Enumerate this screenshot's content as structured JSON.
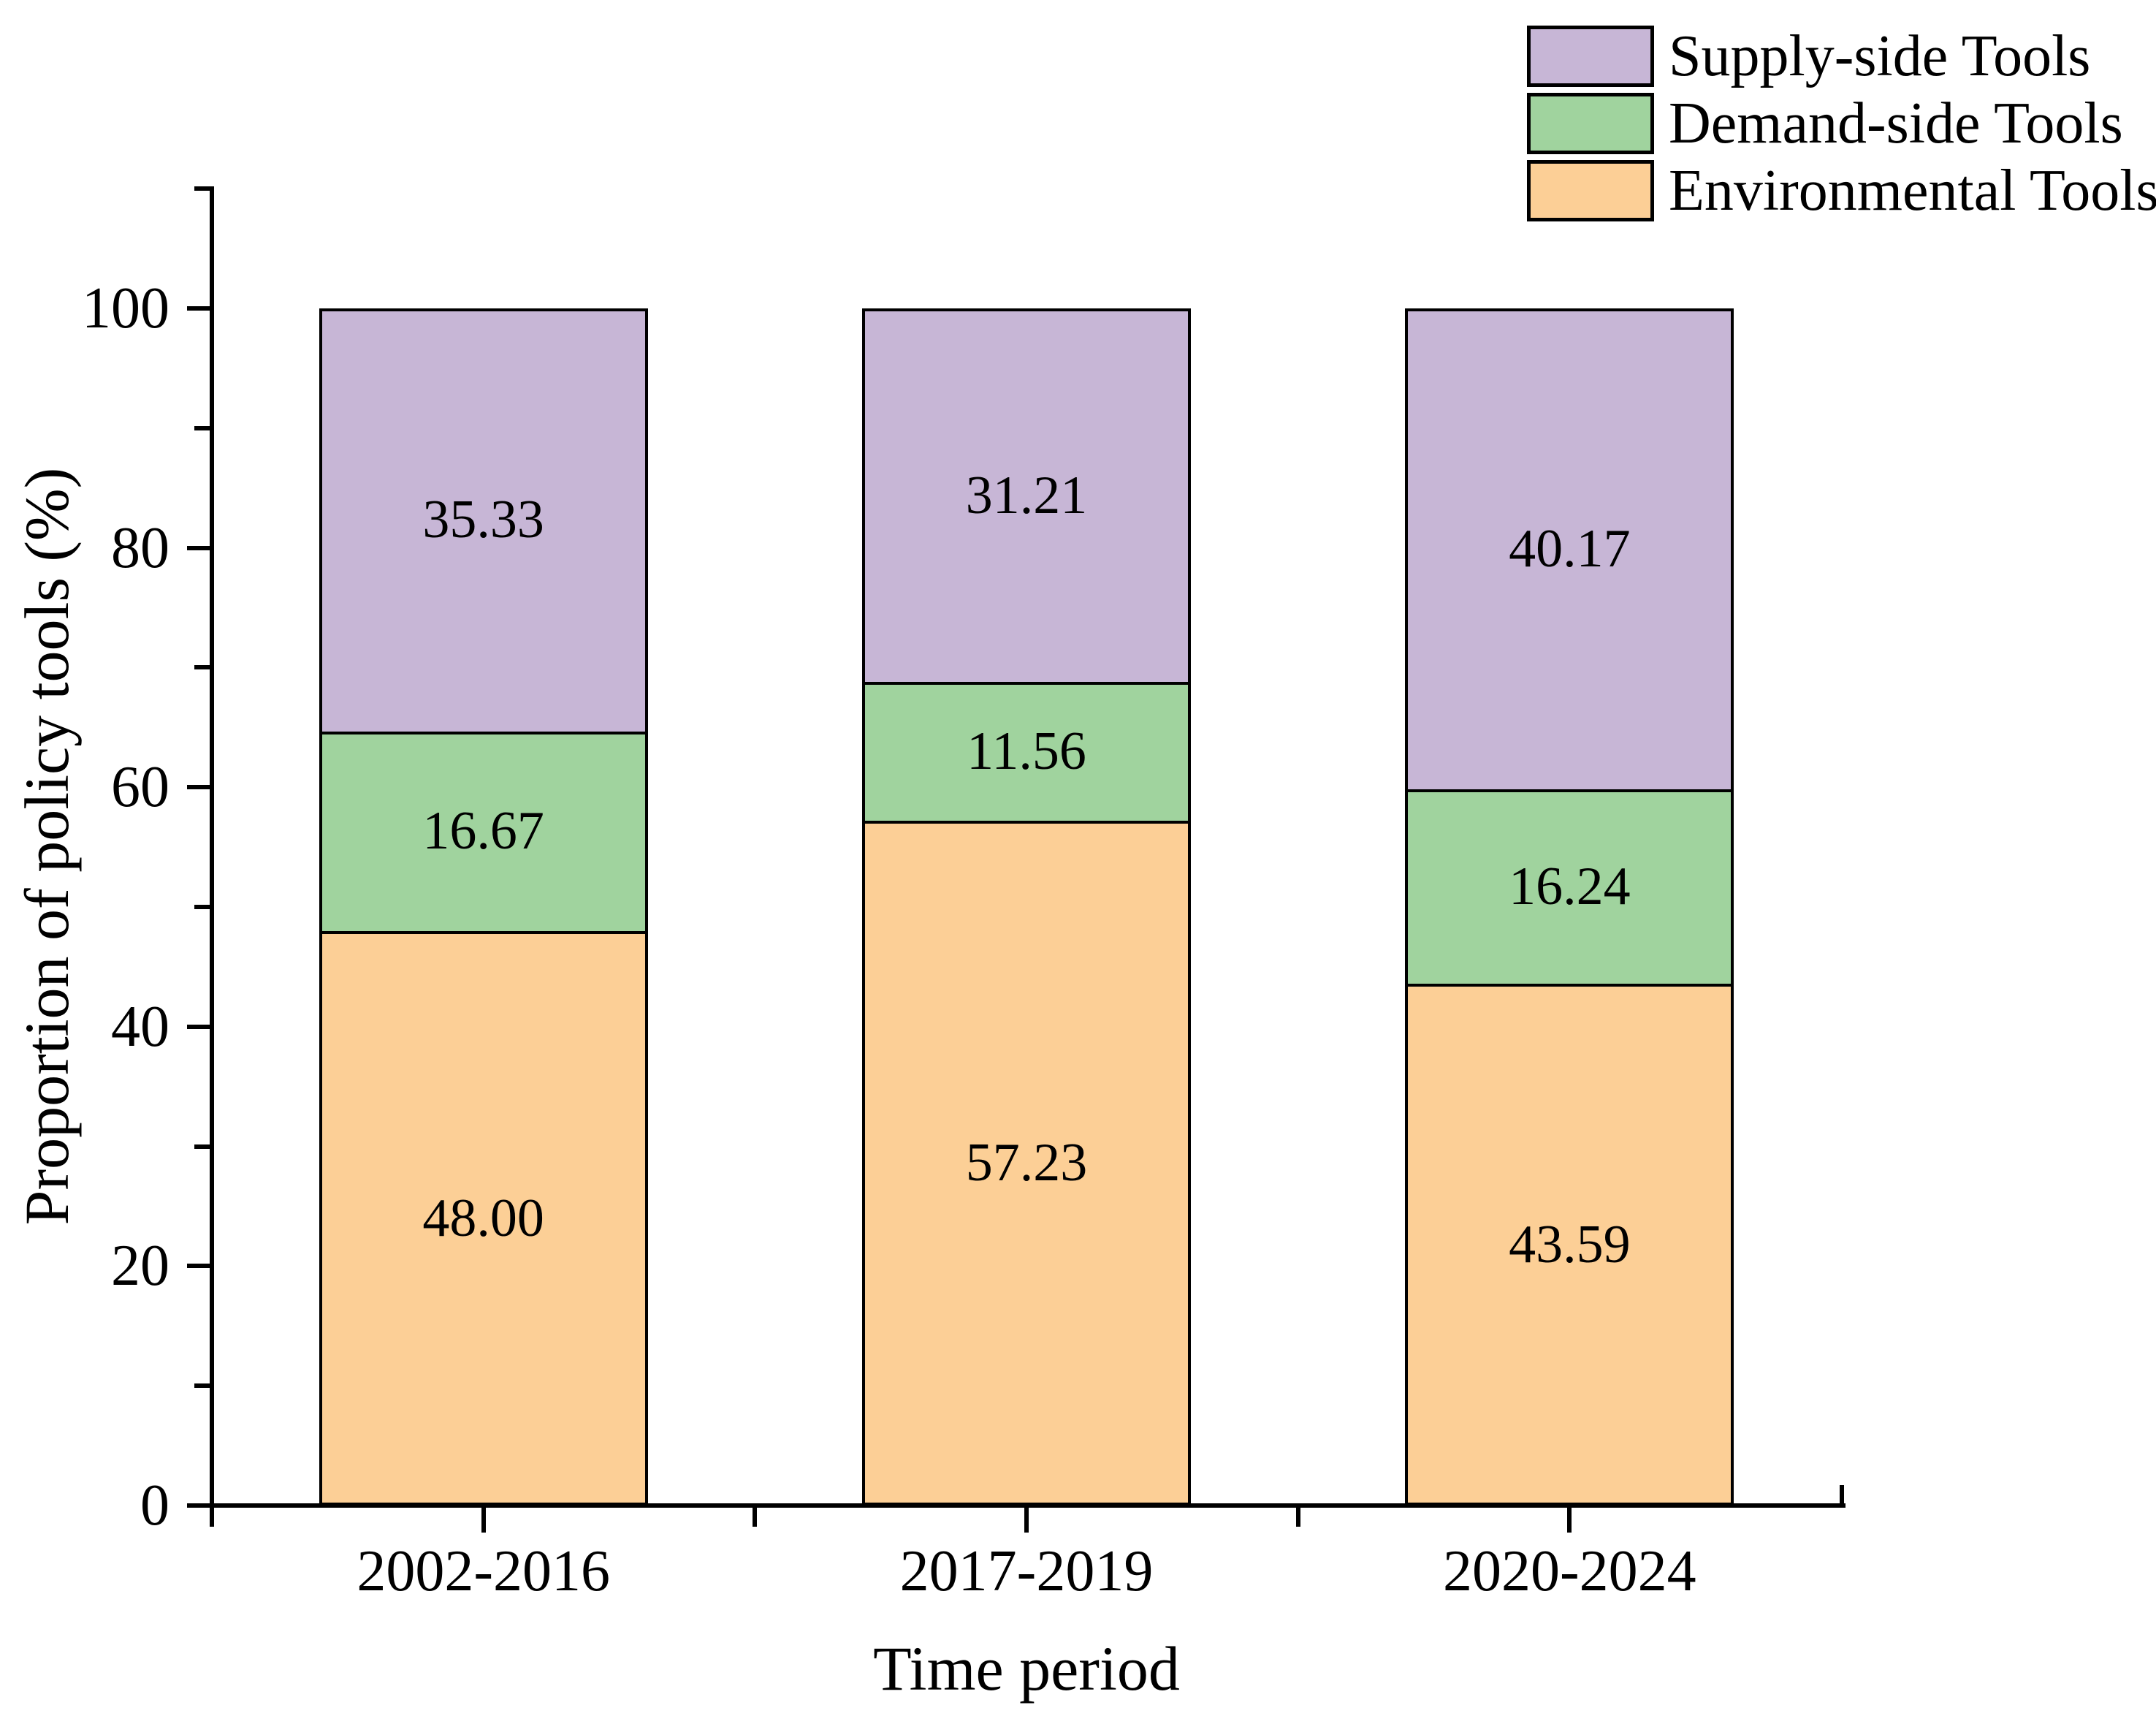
{
  "chart_data": {
    "type": "bar",
    "stacked": true,
    "title": "",
    "xlabel": "Time period",
    "ylabel": "Proportion of policy tools (%)",
    "categories": [
      "2002-2016",
      "2017-2019",
      "2020-2024"
    ],
    "series": [
      {
        "name": "Environmental Tools",
        "color": "#FCCF96",
        "values": [
          48.0,
          57.23,
          43.59
        ]
      },
      {
        "name": "Demand-side Tools",
        "color": "#A0D39E",
        "values": [
          16.67,
          11.56,
          16.24
        ]
      },
      {
        "name": "Supply-side Tools",
        "color": "#C7B6D6",
        "values": [
          35.33,
          31.21,
          40.17
        ]
      }
    ],
    "value_labels": [
      [
        "48.00",
        "57.23",
        "43.59"
      ],
      [
        "16.67",
        "11.56",
        "16.24"
      ],
      [
        "35.33",
        "31.21",
        "40.17"
      ]
    ],
    "y_axis": {
      "min": 0,
      "max": 110,
      "major_tick_step": 20,
      "minor_tick_step": 10,
      "tick_labels": [
        "0",
        "20",
        "40",
        "60",
        "80",
        "100"
      ]
    },
    "legend": {
      "position": "top-right",
      "items": [
        "Supply-side Tools",
        "Demand-side Tools",
        "Environmental Tools"
      ]
    },
    "grid": false,
    "bar_edge_color": "#000000",
    "text_color": "#000000",
    "background": "#FFFFFF"
  }
}
